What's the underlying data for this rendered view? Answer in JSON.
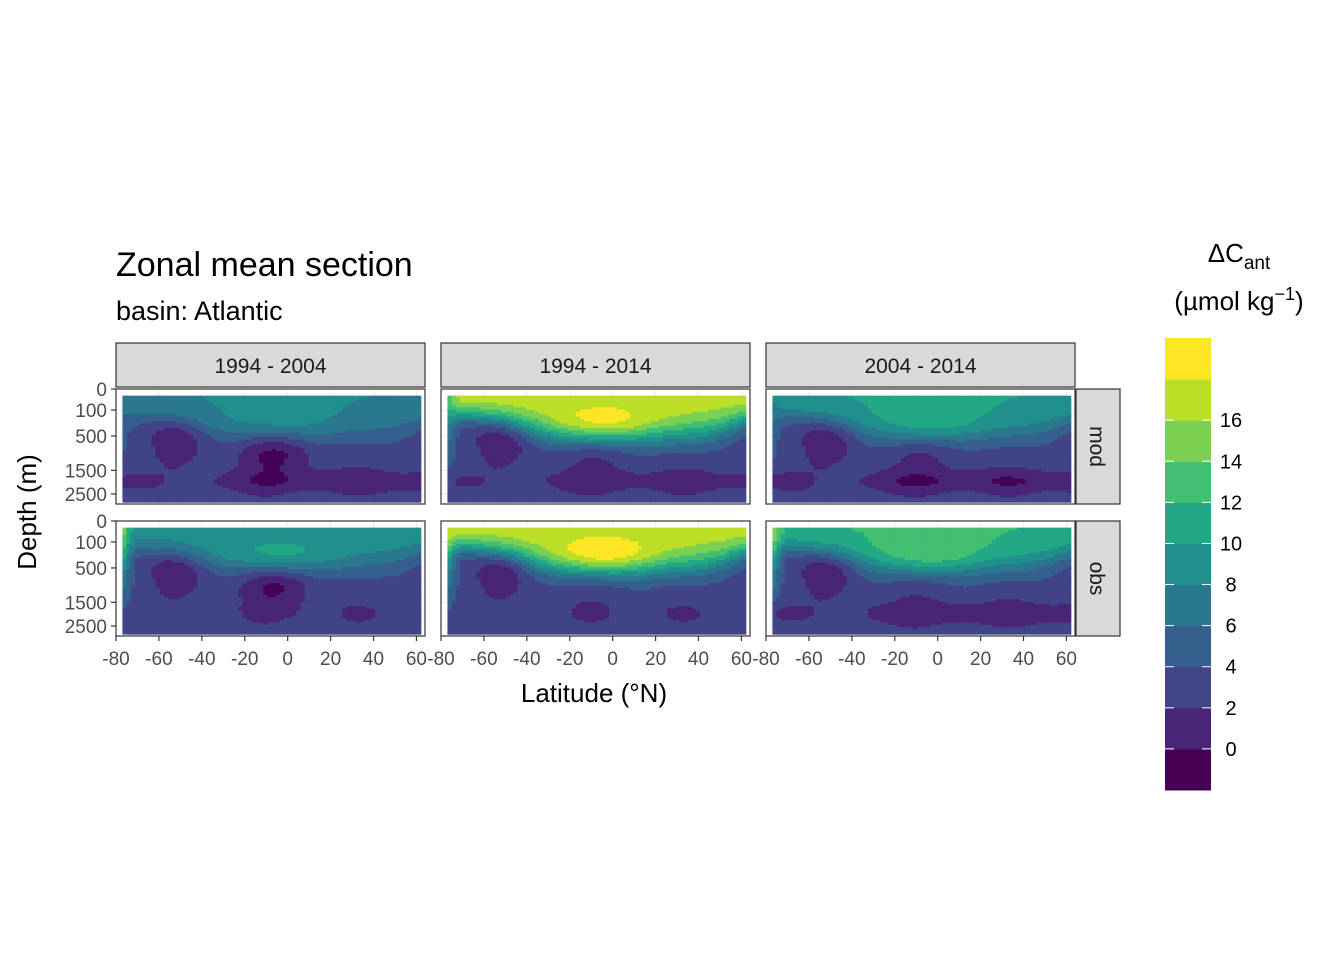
{
  "chart_data": {
    "type": "heatmap",
    "title": "Zonal mean section",
    "subtitle": "basin: Atlantic",
    "xlabel": "Latitude (°N)",
    "ylabel": "Depth (m)",
    "x_ticks": [
      -80,
      -60,
      -40,
      -20,
      0,
      20,
      40,
      60
    ],
    "x_tick_labels": [
      "-80",
      "-60",
      "-40",
      "-20",
      "0",
      "20",
      "40",
      "60"
    ],
    "xlim": [
      -80,
      64
    ],
    "y_ticks": [
      0,
      100,
      500,
      1500,
      2500
    ],
    "y_tick_labels": [
      "0",
      "100",
      "500",
      "1500",
      "2500"
    ],
    "y_scale": "sqrt, reversed",
    "ylim": [
      0,
      3000
    ],
    "columns": [
      "1994 - 2004",
      "1994 - 2014",
      "2004 - 2014"
    ],
    "rows": [
      "mod",
      "obs"
    ],
    "legend": {
      "title_main": "ΔC",
      "title_sub": "ant",
      "unit_prefix": "(µmol kg",
      "unit_sup": "−1",
      "unit_suffix": ")",
      "labels": [
        "0",
        "2",
        "4",
        "6",
        "8",
        "10",
        "12",
        "14",
        "16"
      ],
      "breaks": [
        -2,
        0,
        2,
        4,
        6,
        8,
        10,
        12,
        14,
        16,
        18
      ],
      "colors": [
        "#440154",
        "#482576",
        "#414487",
        "#35608D",
        "#2A788E",
        "#21908C",
        "#22A884",
        "#43BF71",
        "#7AD151",
        "#BBDF27",
        "#FDE725"
      ],
      "placement": "right"
    },
    "panels": [
      {
        "row": "mod",
        "col": "1994 - 2004",
        "surface": 8,
        "base_deep": 3,
        "lowlat_core": -1.5,
        "tropical_rise": 2,
        "deep_min": 0,
        "coastal_south": 6
      },
      {
        "row": "mod",
        "col": "1994 - 2014",
        "surface": 17,
        "base_deep": 3,
        "lowlat_core": 1,
        "tropical_rise": 5,
        "deep_min": 0.5,
        "coastal_south": 12
      },
      {
        "row": "mod",
        "col": "2004 - 2014",
        "surface": 10,
        "base_deep": 3,
        "lowlat_core": 1,
        "tropical_rise": 3,
        "deep_min": -0.5,
        "coastal_south": 7
      },
      {
        "row": "obs",
        "col": "1994 - 2004",
        "surface": 9,
        "base_deep": 3,
        "lowlat_core": -1.5,
        "tropical_rise": 3,
        "deep_min": 2,
        "coastal_south": 18
      },
      {
        "row": "obs",
        "col": "1994 - 2014",
        "surface": 17,
        "base_deep": 3,
        "lowlat_core": 2,
        "tropical_rise": 6,
        "deep_min": 2,
        "coastal_south": 18
      },
      {
        "row": "obs",
        "col": "2004 - 2014",
        "surface": 12,
        "base_deep": 3,
        "lowlat_core": 2,
        "tropical_rise": 4,
        "deep_min": 0,
        "coastal_south": 18
      }
    ]
  }
}
